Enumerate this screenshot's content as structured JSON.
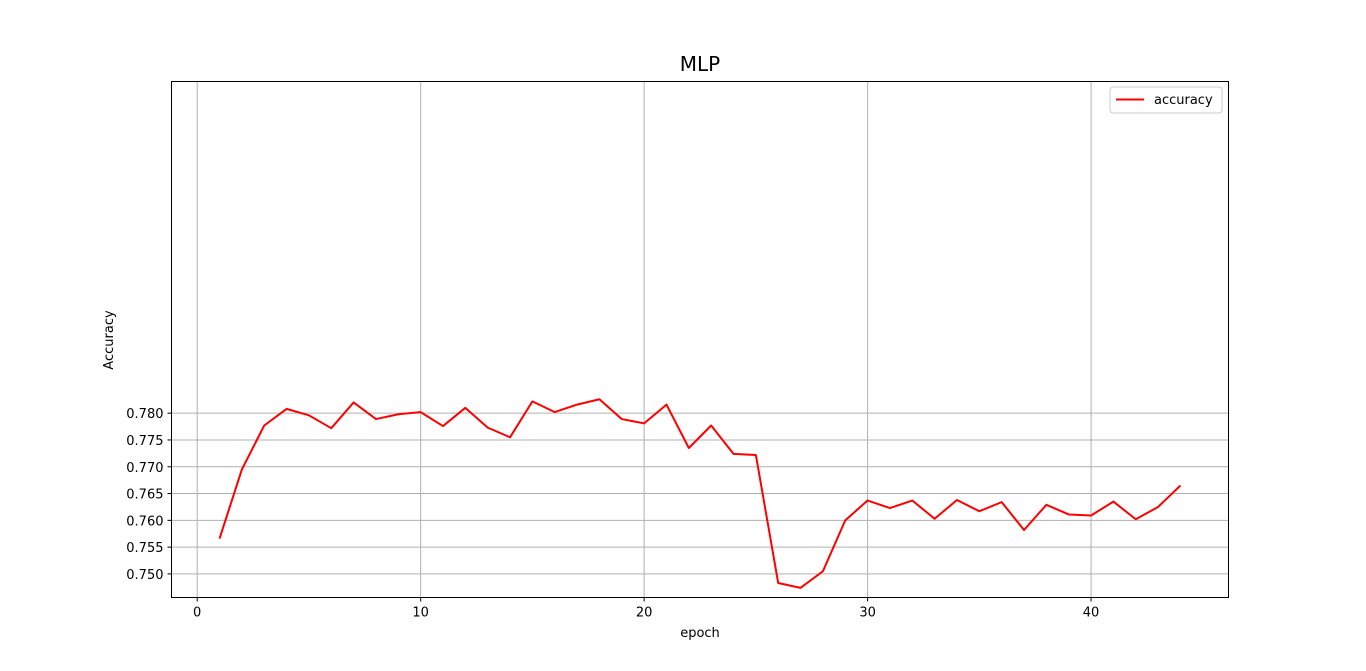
{
  "chart_data": {
    "type": "line",
    "title": "MLP",
    "xlabel": "epoch",
    "ylabel": "Accuracy",
    "xlim": [
      -1.15,
      46.15
    ],
    "ylim": [
      0.7456,
      0.8419
    ],
    "xticks": [
      0,
      10,
      20,
      30,
      40
    ],
    "yticks": [
      0.75,
      0.755,
      0.76,
      0.765,
      0.77,
      0.775,
      0.78
    ],
    "ytick_labels": [
      "0.750",
      "0.755",
      "0.760",
      "0.765",
      "0.770",
      "0.775",
      "0.780"
    ],
    "grid": true,
    "legend_position": "top-right",
    "series": [
      {
        "name": "accuracy",
        "color": "#ff0000",
        "x": [
          1,
          2,
          3,
          4,
          5,
          6,
          7,
          8,
          9,
          10,
          11,
          12,
          13,
          14,
          15,
          16,
          17,
          18,
          19,
          20,
          21,
          22,
          23,
          24,
          25,
          26,
          27,
          28,
          29,
          30,
          31,
          32,
          33,
          34,
          35,
          36,
          37,
          38,
          39,
          40,
          41,
          42,
          43,
          44
        ],
        "y": [
          0.7566,
          0.7695,
          0.7777,
          0.7808,
          0.7796,
          0.7772,
          0.782,
          0.7789,
          0.7798,
          0.7802,
          0.7776,
          0.781,
          0.7773,
          0.7755,
          0.7822,
          0.7802,
          0.7816,
          0.7826,
          0.7789,
          0.7781,
          0.7816,
          0.7735,
          0.7777,
          0.7724,
          0.7722,
          0.7483,
          0.7474,
          0.7505,
          0.76,
          0.7637,
          0.7623,
          0.7637,
          0.7603,
          0.7638,
          0.7617,
          0.7634,
          0.7582,
          0.7629,
          0.7611,
          0.7609,
          0.7635,
          0.7602,
          0.7625,
          0.7665
        ]
      }
    ]
  }
}
